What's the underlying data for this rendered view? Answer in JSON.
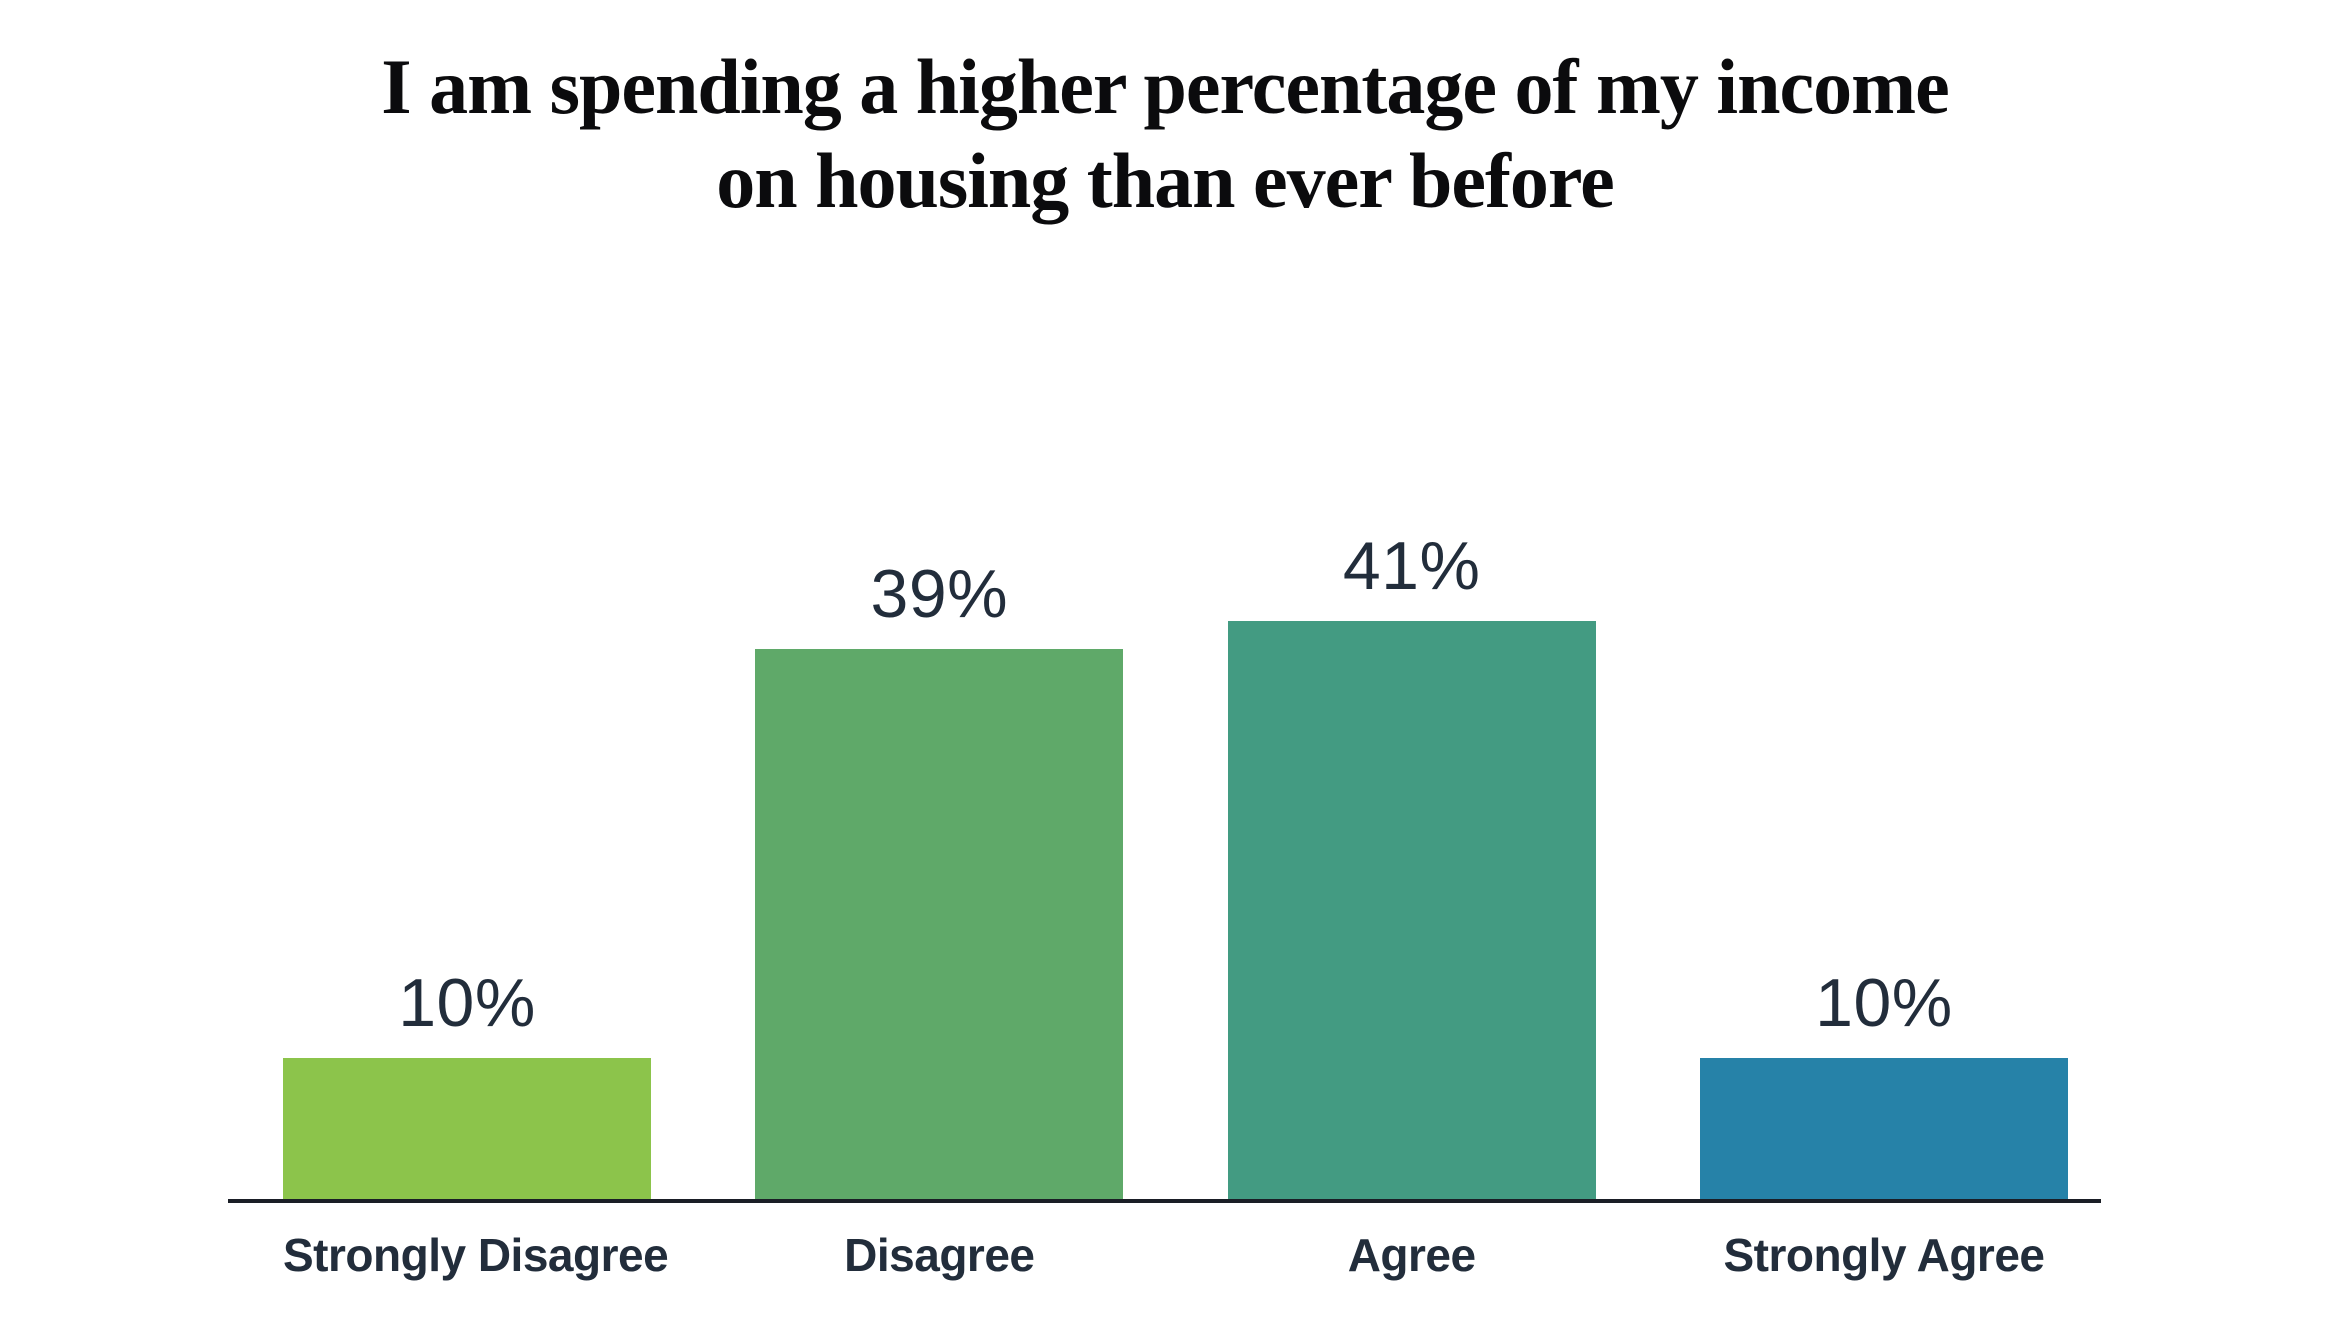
{
  "title": {
    "line1": "I am spending a higher percentage of my income",
    "line2": "on housing than ever before"
  },
  "chart_data": {
    "type": "bar",
    "title": "I am spending a higher percentage of my income on housing than ever before",
    "categories": [
      "Strongly Disagree",
      "Disagree",
      "Agree",
      "Strongly Agree"
    ],
    "values": [
      10,
      39,
      41,
      10
    ],
    "value_labels": [
      "10%",
      "39%",
      "41%",
      "10%"
    ],
    "colors": [
      "#8cc44b",
      "#5fa969",
      "#439b82",
      "#2682a8"
    ],
    "xlabel": "",
    "ylabel": "",
    "ylim": [
      0,
      45
    ],
    "grid": false,
    "legend": "none",
    "axis_color": "#1a1e26",
    "label_color": "#222d3b",
    "title_color": "#0b0b0d",
    "background_color": "#ffffff"
  }
}
